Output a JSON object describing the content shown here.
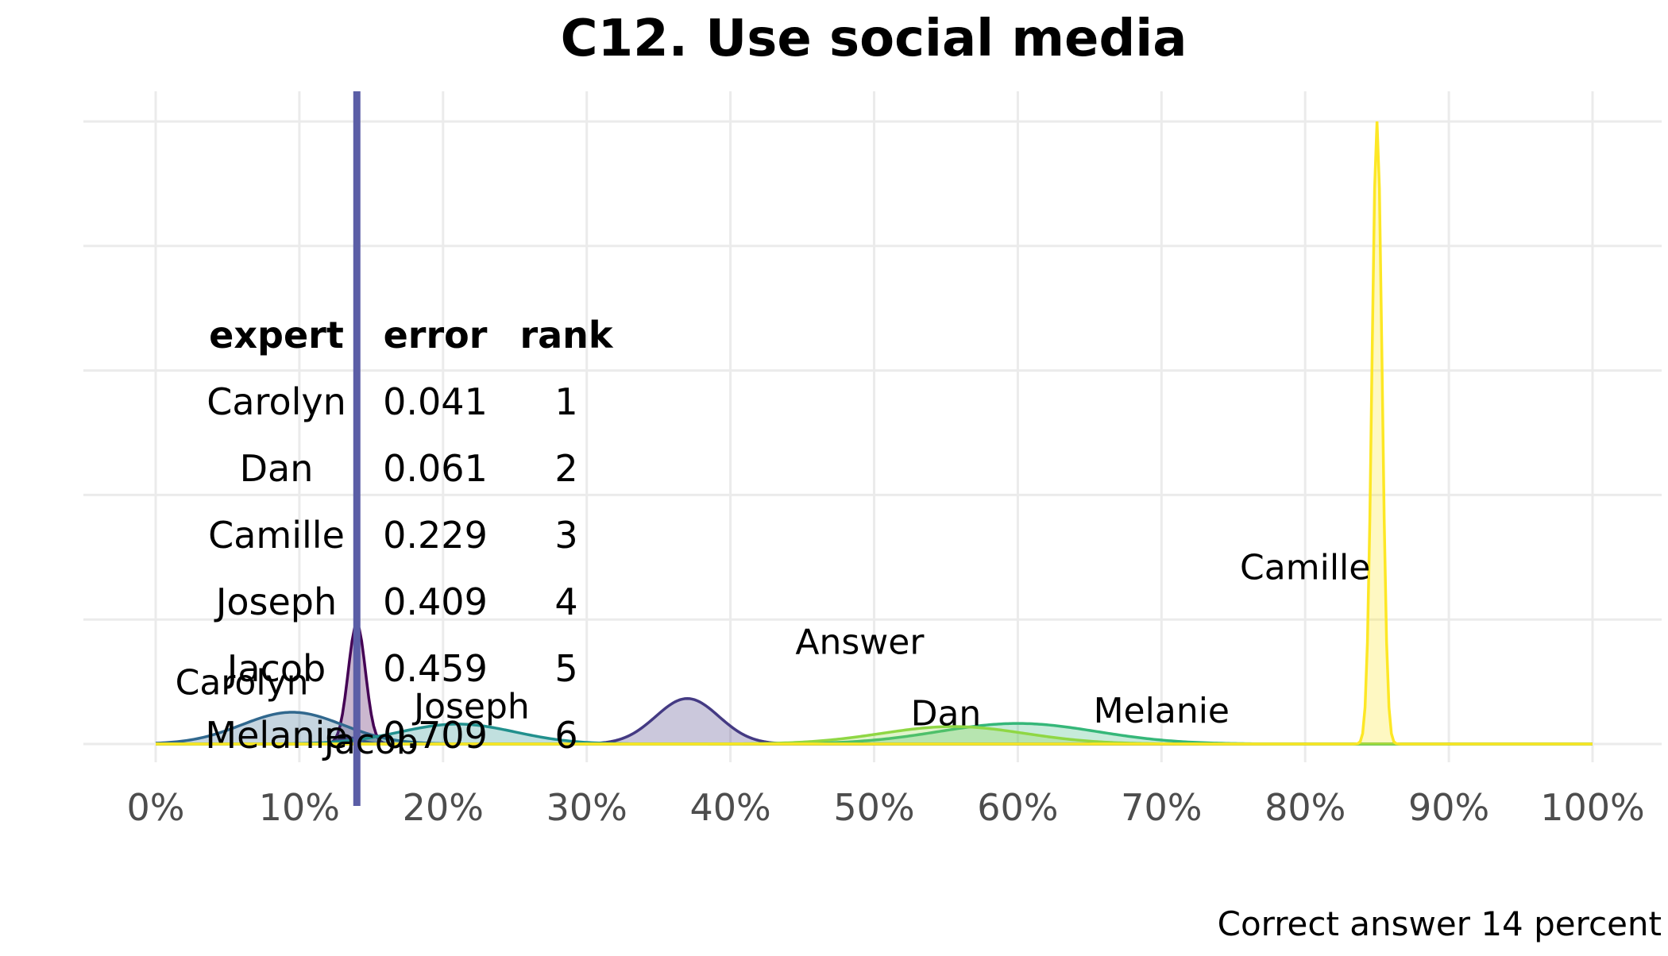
{
  "chart_data": {
    "type": "area",
    "title": "C12. Use social media",
    "caption": "Correct answer 14 percent",
    "xlim": [
      0,
      1
    ],
    "x_ticks": [
      0,
      0.1,
      0.2,
      0.3,
      0.4,
      0.5,
      0.6,
      0.7,
      0.8,
      0.9,
      1.0
    ],
    "x_tick_labels": [
      "0%",
      "10%",
      "20%",
      "30%",
      "40%",
      "50%",
      "60%",
      "70%",
      "80%",
      "90%",
      "100%"
    ],
    "grid": true,
    "reference_line": {
      "x": 0.14,
      "color": "#5b5ea6"
    },
    "series": [
      {
        "name": "Jacob",
        "color": "#440154",
        "peaks": [
          {
            "x": 0.14,
            "sd": 0.006,
            "height": 0.193
          }
        ]
      },
      {
        "name": "Answer",
        "color": "#443a83",
        "peaks": [
          {
            "x": 0.37,
            "sd": 0.022,
            "height": 0.073
          },
          {
            "x": 0.135,
            "sd": 0.008,
            "height": 0.01
          }
        ]
      },
      {
        "name": "Carolyn",
        "color": "#31688e",
        "peaks": [
          {
            "x": 0.095,
            "sd": 0.035,
            "height": 0.051
          }
        ]
      },
      {
        "name": "Joseph",
        "color": "#21908d",
        "peaks": [
          {
            "x": 0.21,
            "sd": 0.04,
            "height": 0.032
          }
        ]
      },
      {
        "name": "Melanie",
        "color": "#35b779",
        "peaks": [
          {
            "x": 0.6,
            "sd": 0.055,
            "height": 0.033
          }
        ]
      },
      {
        "name": "Dan",
        "color": "#8fd744",
        "peaks": [
          {
            "x": 0.555,
            "sd": 0.05,
            "height": 0.028
          }
        ]
      },
      {
        "name": "Camille",
        "color": "#fde725",
        "peaks": [
          {
            "x": 0.85,
            "sd": 0.0035,
            "height": 1.0
          }
        ]
      }
    ],
    "density_labels": [
      {
        "name": "Camille",
        "x": 0.8,
        "y": 0.28
      },
      {
        "name": "Answer",
        "x": 0.49,
        "y": 0.16
      },
      {
        "name": "Dan",
        "x": 0.55,
        "y": 0.045
      },
      {
        "name": "Melanie",
        "x": 0.7,
        "y": 0.05
      },
      {
        "name": "Carolyn",
        "x": 0.06,
        "y": 0.095
      },
      {
        "name": "Joseph",
        "x": 0.22,
        "y": 0.057
      },
      {
        "name": "Jacob",
        "x": 0.15,
        "y": 0.0
      }
    ],
    "table": {
      "headers": [
        "expert",
        "error",
        "rank"
      ],
      "rows": [
        [
          "Carolyn",
          "0.041",
          "1"
        ],
        [
          "Dan",
          "0.061",
          "2"
        ],
        [
          "Camille",
          "0.229",
          "3"
        ],
        [
          "Joseph",
          "0.409",
          "4"
        ],
        [
          "Jacob",
          "0.459",
          "5"
        ],
        [
          "Melanie",
          "0.709",
          "6"
        ]
      ]
    }
  }
}
